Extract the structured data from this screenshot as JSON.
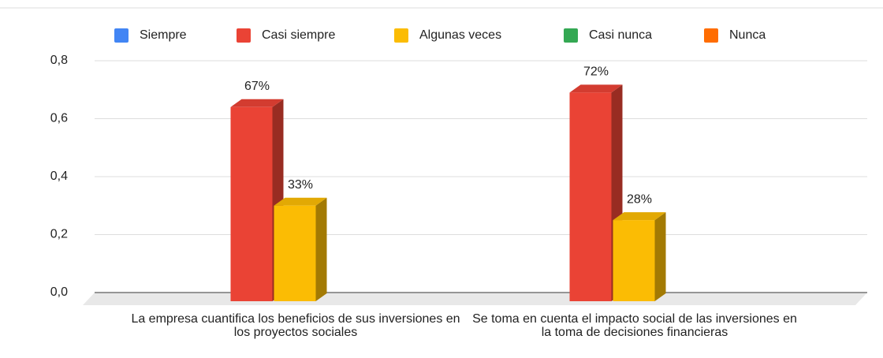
{
  "chart_data": {
    "type": "bar3d",
    "categories": [
      "La empresa cuantifica los beneficios de sus inversiones en los proyectos sociales",
      "Se toma en cuenta el impacto social de las inversiones en la toma de decisiones financieras"
    ],
    "series": [
      {
        "name": "Siempre",
        "color": "#4285f4",
        "values": [
          null,
          null
        ]
      },
      {
        "name": "Casi siempre",
        "color": "#ea4335",
        "values": [
          0.67,
          0.72
        ],
        "value_labels": [
          "67%",
          "72%"
        ]
      },
      {
        "name": "Algunas veces",
        "color": "#fbbc04",
        "values": [
          0.33,
          0.28
        ],
        "value_labels": [
          "33%",
          "28%"
        ]
      },
      {
        "name": "Casi nunca",
        "color": "#34a853",
        "values": [
          null,
          null
        ]
      },
      {
        "name": "Nunca",
        "color": "#ff6d01",
        "values": [
          null,
          null
        ]
      }
    ],
    "ylim": [
      0,
      0.8
    ],
    "yticks": [
      {
        "value": 0,
        "label": "0,0"
      },
      {
        "value": 0.2,
        "label": "0,2"
      },
      {
        "value": 0.4,
        "label": "0,4"
      },
      {
        "value": 0.6,
        "label": "0,6"
      },
      {
        "value": 0.8,
        "label": "0,8"
      }
    ],
    "grid": true,
    "legend": "top"
  }
}
